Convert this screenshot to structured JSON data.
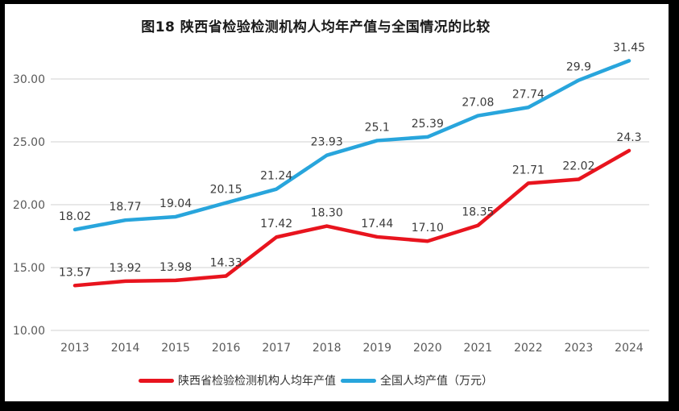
{
  "chart_data": {
    "type": "line",
    "title": "图18 陕西省检验检测机构人均年产值与全国情况的比较",
    "categories": [
      "2013",
      "2014",
      "2015",
      "2016",
      "2017",
      "2018",
      "2019",
      "2020",
      "2021",
      "2022",
      "2023",
      "2024"
    ],
    "series": [
      {
        "id": "shaanxi",
        "name": "陕西省检验检测机构人均年产值",
        "color": "#e8141e",
        "values": [
          13.57,
          13.92,
          13.98,
          14.33,
          17.42,
          18.3,
          17.44,
          17.1,
          18.35,
          21.71,
          22.02,
          24.3
        ],
        "labels": [
          "13.57",
          "13.92",
          "13.98",
          "14.33",
          "17.42",
          "18.30",
          "17.44",
          "17.10",
          "18.35",
          "21.71",
          "22.02",
          "24.3"
        ]
      },
      {
        "id": "national",
        "name": "全国人均产值（万元）",
        "color": "#28a5dc",
        "values": [
          18.02,
          18.77,
          19.04,
          20.15,
          21.24,
          23.93,
          25.1,
          25.39,
          27.08,
          27.74,
          29.9,
          31.45
        ],
        "labels": [
          "18.02",
          "18.77",
          "19.04",
          "20.15",
          "21.24",
          "23.93",
          "25.1",
          "25.39",
          "27.08",
          "27.74",
          "29.9",
          "31.45"
        ]
      }
    ],
    "y_axis": {
      "min": 10,
      "max": 30,
      "ticks": [
        {
          "value": 10,
          "label": "10.00"
        },
        {
          "value": 15,
          "label": "15.00"
        },
        {
          "value": 20,
          "label": "20.00"
        },
        {
          "value": 25,
          "label": "25.00"
        },
        {
          "value": 30,
          "label": "30.00"
        }
      ]
    },
    "grid": true,
    "legend_position": "bottom",
    "colors": {
      "grid": "#d9d9d9",
      "axis_text": "#595959",
      "label_text": "#3b3b3b",
      "title_text": "#1a1a1a"
    }
  }
}
